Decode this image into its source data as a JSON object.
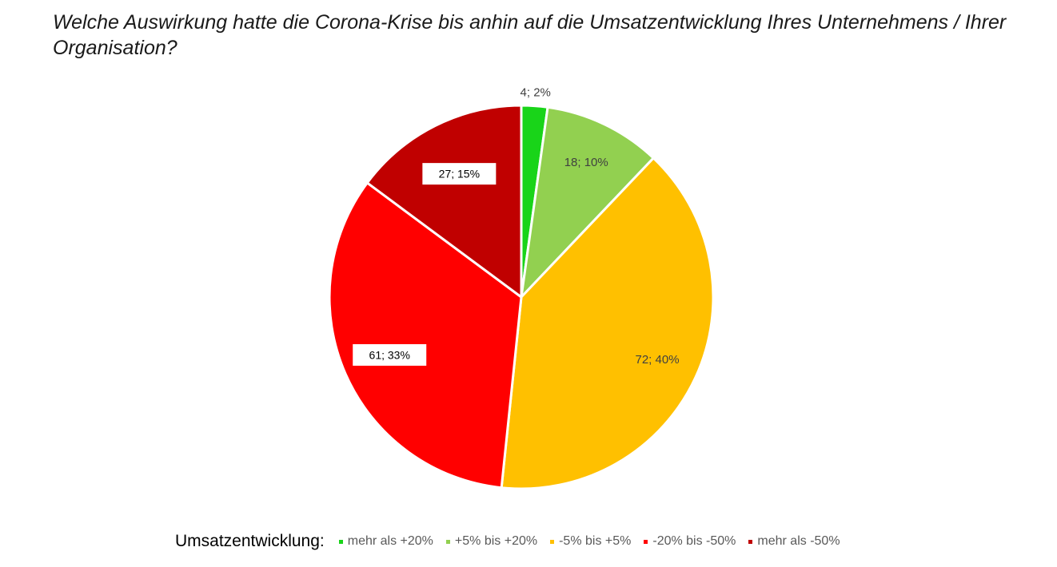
{
  "chart_data": {
    "type": "pie",
    "title": "Welche Auswirkung hatte die Corona-Krise bis anhin auf die Umsatzentwicklung Ihres Unternehmens / Ihrer Organisation?",
    "legend_title": "Umsatzentwicklung:",
    "legend_position": "bottom",
    "categories": [
      "mehr als +20%",
      "+5% bis +20%",
      "-5% bis +5%",
      "-20% bis -50%",
      "mehr als -50%"
    ],
    "values": [
      4,
      18,
      72,
      61,
      27
    ],
    "percentages": [
      2,
      10,
      40,
      33,
      15
    ],
    "data_labels": [
      "4; 2%",
      "18; 10%",
      "72; 40%",
      "61; 33%",
      "27; 15%"
    ],
    "colors": [
      "#19d419",
      "#92d050",
      "#ffc000",
      "#ff0000",
      "#c00000"
    ]
  }
}
